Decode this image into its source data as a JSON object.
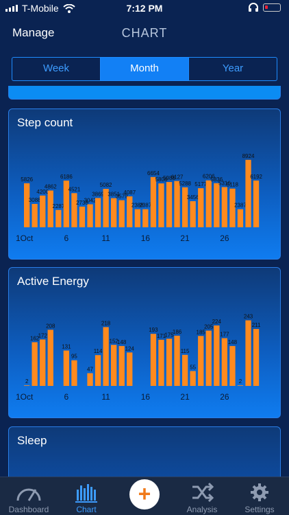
{
  "status": {
    "carrier": "T-Mobile",
    "time": "7:12 PM"
  },
  "nav": {
    "left": "Manage",
    "title": "CHART"
  },
  "segments": [
    {
      "label": "Week",
      "active": false
    },
    {
      "label": "Month",
      "active": true
    },
    {
      "label": "Year",
      "active": false
    }
  ],
  "cards": {
    "steps": {
      "title": "Step count"
    },
    "energy": {
      "title": "Active Energy"
    },
    "sleep": {
      "title": "Sleep"
    }
  },
  "colors": {
    "bar": "#ff8a1e",
    "accent": "#1280f5",
    "tab_active": "#3d9cff"
  },
  "chart_data": [
    {
      "type": "bar",
      "title": "Step count",
      "x": [
        1,
        2,
        3,
        4,
        5,
        6,
        7,
        8,
        9,
        10,
        11,
        12,
        13,
        14,
        15,
        16,
        17,
        18,
        19,
        20,
        21,
        22,
        23,
        24,
        25,
        26,
        27,
        28,
        29,
        30,
        31
      ],
      "x_tick_labels": [
        "1Oct",
        "6",
        "11",
        "16",
        "21",
        "26"
      ],
      "x_ticks_at": [
        1,
        6,
        11,
        16,
        21,
        26
      ],
      "values": [
        5826,
        3088,
        4200,
        4862,
        2287,
        6186,
        4521,
        2738,
        3042,
        3869,
        5082,
        3851,
        3579,
        4087,
        2388,
        2387,
        6654,
        5808,
        5988,
        6127,
        5288,
        3456,
        5177,
        6206,
        5836,
        5316,
        5118,
        2387,
        8924,
        6192,
        null
      ],
      "ylim": [
        0,
        10000
      ]
    },
    {
      "type": "bar",
      "title": "Active Energy",
      "x": [
        1,
        2,
        3,
        4,
        5,
        6,
        7,
        8,
        9,
        10,
        11,
        12,
        13,
        14,
        15,
        16,
        17,
        18,
        19,
        20,
        21,
        22,
        23,
        24,
        25,
        26,
        27,
        28,
        29,
        30,
        31
      ],
      "x_tick_labels": [
        "1Oct",
        "6",
        "11",
        "16",
        "21",
        "26"
      ],
      "x_ticks_at": [
        1,
        6,
        11,
        16,
        21,
        26
      ],
      "values": [
        2,
        162,
        172,
        208,
        null,
        131,
        95,
        null,
        47,
        114,
        218,
        152,
        148,
        124,
        null,
        null,
        193,
        171,
        175,
        186,
        115,
        55,
        185,
        205,
        224,
        177,
        148,
        2,
        243,
        211,
        null
      ],
      "ylim": [
        0,
        280
      ]
    }
  ],
  "tabs": [
    {
      "label": "Dashboard",
      "icon": "gauge-icon",
      "active": false
    },
    {
      "label": "Chart",
      "icon": "bar-chart-icon",
      "active": true
    },
    {
      "label": "",
      "icon": "plus-icon",
      "active": false
    },
    {
      "label": "Analysis",
      "icon": "shuffle-icon",
      "active": false
    },
    {
      "label": "Settings",
      "icon": "gear-icon",
      "active": false
    }
  ]
}
